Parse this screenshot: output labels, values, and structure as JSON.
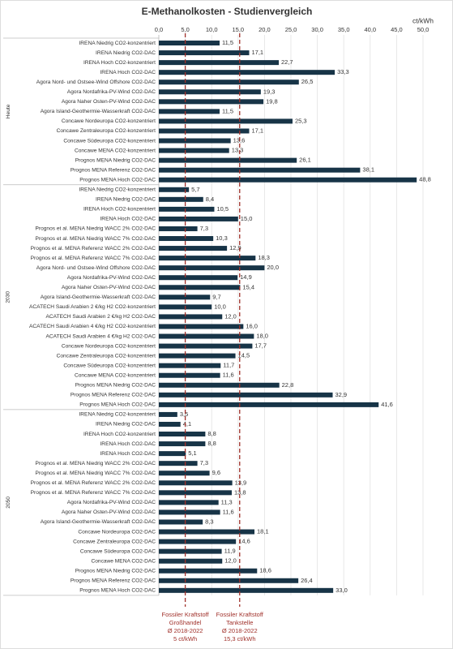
{
  "chart_data": {
    "type": "bar",
    "orientation": "horizontal",
    "title": "E-Methanolkosten - Studienvergleich",
    "unit": "ct/kWh",
    "color": "#173447",
    "grid": true,
    "xlim": [
      0,
      50
    ],
    "xticks": [
      {
        "value": 0,
        "label": "0,0"
      },
      {
        "value": 5,
        "label": "5,0"
      },
      {
        "value": 10,
        "label": "10,0"
      },
      {
        "value": 15,
        "label": "15,0"
      },
      {
        "value": 20,
        "label": "20,0"
      },
      {
        "value": 25,
        "label": "25,0"
      },
      {
        "value": 30,
        "label": "30,0"
      },
      {
        "value": 35,
        "label": "35,0"
      },
      {
        "value": 40,
        "label": "40,0"
      },
      {
        "value": 45,
        "label": "45,0"
      },
      {
        "value": 50,
        "label": "50,0"
      }
    ],
    "groups": [
      {
        "name": "Heute",
        "categories": [
          "IRENA Niedrig CO2-konzentriert",
          "IRENA Niedrig CO2-DAC",
          "IRENA Hoch CO2-konzentriert",
          "IRENA Hoch CO2-DAC",
          "Agora Nord- und Ostsee-Wind Offshore CO2-DAC",
          "Agora Nordafrika-PV-Wind CO2-DAC",
          "Agora Naher Osten-PV-Wind CO2-DAC",
          "Agora Island-Geothermie-Wasserkraft CO2-DAC",
          "Concawe Nordeuropa CO2-konzentriert",
          "Concawe Zentraleuropa CO2-konzentriert",
          "Concawe Südeuropa CO2-konzentriert",
          "Concawe MENA CO2-konzentriert",
          "Prognos MENA Niedrig CO2-DAC",
          "Prognos MENA Referenz CO2-DAC",
          "Prognos MENA Hoch CO2-DAC"
        ],
        "values": [
          11.5,
          17.1,
          22.7,
          33.3,
          26.5,
          19.3,
          19.8,
          11.5,
          25.3,
          17.1,
          13.6,
          13.3,
          26.1,
          38.1,
          48.8
        ],
        "value_labels": [
          "11,5",
          "17,1",
          "22,7",
          "33,3",
          "26,5",
          "19,3",
          "19,8",
          "11,5",
          "25,3",
          "17,1",
          "13,6",
          "13,3",
          "26,1",
          "38,1",
          "48,8"
        ]
      },
      {
        "name": "2030",
        "categories": [
          "IRENA Niedrig CO2-konzentriert",
          "IRENA Niedrig CO2-DAC",
          "IRENA Hoch CO2-konzentriert",
          "IRENA Hoch CO2-DAC",
          "Prognos et al. MENA Niedrig WACC 2% CO2-DAC",
          "Prognos et al. MENA Niedrig WACC 7% CO2-DAC",
          "Prognos et al. MENA Referenz WACC 2% CO2-DAC",
          "Prognos et al. MENA Referenz WACC 7% CO2-DAC",
          "Agora Nord- und Ostsee-Wind Offshore CO2-DAC",
          "Agora Nordafrika-PV-Wind CO2-DAC",
          "Agora Naher Osten-PV-Wind CO2-DAC",
          "Agora Island-Geothermie-Wasserkraft CO2-DAC",
          "ACATECH Saudi Arabien 2 €/kg H2 CO2-konzentriert",
          "ACATECH Saudi Arabien 2 €/kg H2 CO2-DAC",
          "ACATECH Saudi Arabien 4 €/kg H2 CO2-konzentriert",
          "ACATECH Saudi Arabien 4 €/kg H2 CO2-DAC",
          "Concawe Nordeuropa CO2-konzentriert",
          "Concawe Zentraleuropa CO2-konzentriert",
          "Concawe Südeuropa CO2-konzentriert",
          "Concawe MENA CO2-konzentriert",
          "Prognos MENA Niedrig CO2-DAC",
          "Prognos MENA Referenz CO2-DAC",
          "Prognos MENA Hoch CO2-DAC"
        ],
        "values": [
          5.7,
          8.4,
          10.5,
          15.0,
          7.3,
          10.3,
          12.9,
          18.3,
          20.0,
          14.9,
          15.4,
          9.7,
          10.0,
          12.0,
          16.0,
          18.0,
          17.7,
          14.5,
          11.7,
          11.6,
          22.8,
          32.9,
          41.6
        ],
        "value_labels": [
          "5,7",
          "8,4",
          "10,5",
          "15,0",
          "7,3",
          "10,3",
          "12,9",
          "18,3",
          "20,0",
          "14,9",
          "15,4",
          "9,7",
          "10,0",
          "12,0",
          "16,0",
          "18,0",
          "17,7",
          "14,5",
          "11,7",
          "11,6",
          "22,8",
          "32,9",
          "41,6"
        ]
      },
      {
        "name": "2050",
        "categories": [
          "IRENA Niedrig CO2-konzentriert",
          "IRENA Niedrig CO2-DAC",
          "IRENA Hoch CO2-konzentriert",
          "IRENA Hoch CO2-DAC",
          "IRENA Hoch CO2-DAC",
          "Prognos et al. MENA Niedrig WACC 2% CO2-DAC",
          "Prognos et al. MENA Niedrig WACC 7% CO2-DAC",
          "Prognos et al. MENA Referenz WACC 2% CO2-DAC",
          "Prognos et al. MENA Referenz WACC 7% CO2-DAC",
          "Agora Nordafrika-PV-Wind CO2-DAC",
          "Agora Naher Osten-PV-Wind CO2-DAC",
          "Agora Island-Geothermie-Wasserkraft CO2-DAC",
          "Concawe Nordeuropa CO2-DAC",
          "Concawe Zentraleuropa CO2-DAC",
          "Concawe Südeuropa CO2-DAC",
          "Concawe MENA CO2-DAC",
          "Prognos MENA Niedrig CO2-DAC",
          "Prognos MENA Referenz CO2-DAC",
          "Prognos MENA Hoch CO2-DAC"
        ],
        "values": [
          3.5,
          4.1,
          8.8,
          8.8,
          5.1,
          7.3,
          9.6,
          13.9,
          13.8,
          11.3,
          11.6,
          8.3,
          18.1,
          14.6,
          11.9,
          12.0,
          18.6,
          26.4,
          33.0
        ],
        "value_labels": [
          "3,5",
          "4,1",
          "8,8",
          "8,8",
          "5,1",
          "7,3",
          "9,6",
          "13,9",
          "13,8",
          "11,3",
          "11,6",
          "8,3",
          "18,1",
          "14,6",
          "11,9",
          "12,0",
          "18,6",
          "26,4",
          "33,0"
        ]
      }
    ],
    "reference_lines": [
      {
        "value": 5,
        "color": "#a0302a",
        "label": [
          "Fossiler Kraftstoff",
          "Großhandel",
          "Ø 2018-2022",
          "5 ct/kWh"
        ]
      },
      {
        "value": 15.3,
        "color": "#a0302a",
        "label": [
          "Fossiler Kraftstoff",
          "Tankstelle",
          "Ø 2018-2022",
          "15,3 ct/kWh"
        ]
      }
    ]
  }
}
